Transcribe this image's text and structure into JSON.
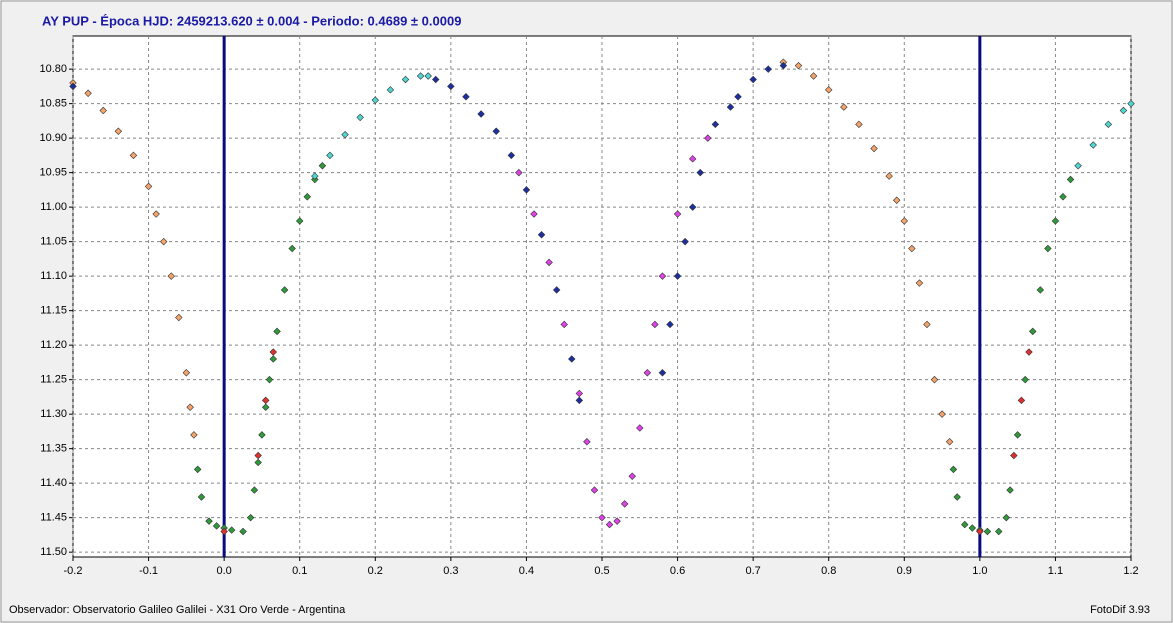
{
  "chart_data": {
    "type": "scatter",
    "title": "AY PUP  -  Época HJD: 2459213.620 ± 0.004  -  Periodo: 0.4689 ± 0.0009",
    "footer_left": "Observador: Observatorio Galileo Galilei - X31 Oro Verde - Argentina",
    "footer_right": "FotoDif 3.93",
    "xlim": [
      -0.2,
      1.2
    ],
    "ylim": [
      11.507,
      10.752
    ],
    "xticks": [
      -0.2,
      -0.1,
      {
        "value": 0,
        "label": "0.0"
      },
      0.1,
      0.2,
      0.3,
      0.4,
      0.5,
      0.6,
      0.7,
      0.8,
      0.9,
      {
        "value": 1,
        "label": "1.0"
      },
      1.1,
      1.2
    ],
    "yticks": [
      {
        "value": 10.8,
        "label": "10.80"
      },
      {
        "value": 10.85,
        "label": "10.85"
      },
      {
        "value": 10.9,
        "label": "10.90"
      },
      {
        "value": 10.95,
        "label": "10.95"
      },
      {
        "value": 11,
        "label": "11.00"
      },
      {
        "value": 11.05,
        "label": "11.05"
      },
      {
        "value": 11.1,
        "label": "11.10"
      },
      {
        "value": 11.15,
        "label": "11.15"
      },
      {
        "value": 11.2,
        "label": "11.20"
      },
      {
        "value": 11.25,
        "label": "11.25"
      },
      {
        "value": 11.3,
        "label": "11.30"
      },
      {
        "value": 11.35,
        "label": "11.35"
      },
      {
        "value": 11.4,
        "label": "11.40"
      },
      {
        "value": 11.45,
        "label": "11.45"
      },
      {
        "value": 11.5,
        "label": "11.50"
      }
    ],
    "grid": true,
    "vlines": [
      0,
      1
    ],
    "vline_color": "#0a0a80",
    "series": [
      {
        "color": "#f4a36a",
        "x": [
          -0.2,
          -0.18,
          -0.16,
          -0.14,
          -0.12,
          -0.1,
          -0.09,
          -0.08,
          -0.07,
          -0.06,
          -0.05,
          -0.045,
          -0.04,
          0.74,
          0.76,
          0.78,
          0.8,
          0.82,
          0.84,
          0.86,
          0.88,
          0.89,
          0.9,
          0.91,
          0.92,
          0.93,
          0.94,
          0.95,
          0.96
        ],
        "values": [
          10.82,
          10.835,
          10.86,
          10.89,
          10.925,
          10.97,
          11.01,
          11.05,
          11.1,
          11.16,
          11.24,
          11.29,
          11.33,
          10.79,
          10.795,
          10.81,
          10.83,
          10.855,
          10.88,
          10.915,
          10.955,
          10.99,
          11.02,
          11.06,
          11.11,
          11.17,
          11.25,
          11.3,
          11.34
        ]
      },
      {
        "color": "#2e9a3a",
        "x": [
          -0.035,
          -0.03,
          -0.02,
          -0.01,
          0,
          0.01,
          0.025,
          0.035,
          0.04,
          0.045,
          0.05,
          0.055,
          0.06,
          0.065,
          0.07,
          0.08,
          0.09,
          0.1,
          0.11,
          0.12,
          0.13,
          0.965,
          0.97,
          0.98,
          0.99,
          1,
          1.01,
          1.025,
          1.035,
          1.04,
          1.05,
          1.06,
          1.07,
          1.08,
          1.09,
          1.1,
          1.11,
          1.12
        ],
        "values": [
          11.38,
          11.42,
          11.455,
          11.462,
          11.465,
          11.468,
          11.47,
          11.45,
          11.41,
          11.37,
          11.33,
          11.29,
          11.25,
          11.22,
          11.18,
          11.12,
          11.06,
          11.02,
          10.985,
          10.96,
          10.94,
          11.38,
          11.42,
          11.46,
          11.465,
          11.468,
          11.47,
          11.47,
          11.45,
          11.41,
          11.33,
          11.25,
          11.18,
          11.12,
          11.06,
          11.02,
          10.985,
          10.96
        ]
      },
      {
        "color": "#e03030",
        "x": [
          0,
          0.045,
          0.055,
          0.065,
          1,
          1.045,
          1.055,
          1.065
        ],
        "values": [
          11.47,
          11.36,
          11.28,
          11.21,
          11.47,
          11.36,
          11.28,
          11.21
        ]
      },
      {
        "color": "#4fd6d0",
        "x": [
          0.12,
          0.14,
          0.16,
          0.18,
          0.2,
          0.22,
          0.24,
          0.26,
          0.27,
          1.13,
          1.15,
          1.17,
          1.19,
          1.2
        ],
        "values": [
          10.955,
          10.925,
          10.895,
          10.87,
          10.845,
          10.83,
          10.815,
          10.81,
          10.81,
          10.94,
          10.91,
          10.88,
          10.86,
          10.85
        ]
      },
      {
        "color": "#1c2fa0",
        "x": [
          -0.2,
          0.28,
          0.3,
          0.32,
          0.34,
          0.36,
          0.38,
          0.4,
          0.42,
          0.44,
          0.46,
          0.47,
          0.58,
          0.59,
          0.6,
          0.61,
          0.62,
          0.63,
          0.65,
          0.67,
          0.68,
          0.7,
          0.72,
          0.74
        ],
        "values": [
          10.825,
          10.815,
          10.825,
          10.84,
          10.865,
          10.89,
          10.925,
          10.975,
          11.04,
          11.12,
          11.22,
          11.28,
          11.24,
          11.17,
          11.1,
          11.05,
          11,
          10.95,
          10.88,
          10.855,
          10.84,
          10.815,
          10.8,
          10.795
        ]
      },
      {
        "color": "#e040e8",
        "x": [
          0.39,
          0.41,
          0.43,
          0.45,
          0.47,
          0.48,
          0.49,
          0.5,
          0.51,
          0.52,
          0.53,
          0.54,
          0.55,
          0.56,
          0.57,
          0.58,
          0.6,
          0.62,
          0.64
        ],
        "values": [
          10.95,
          11.01,
          11.08,
          11.17,
          11.27,
          11.34,
          11.41,
          11.45,
          11.46,
          11.455,
          11.43,
          11.39,
          11.32,
          11.24,
          11.17,
          11.1,
          11.01,
          10.93,
          10.9
        ]
      }
    ]
  }
}
